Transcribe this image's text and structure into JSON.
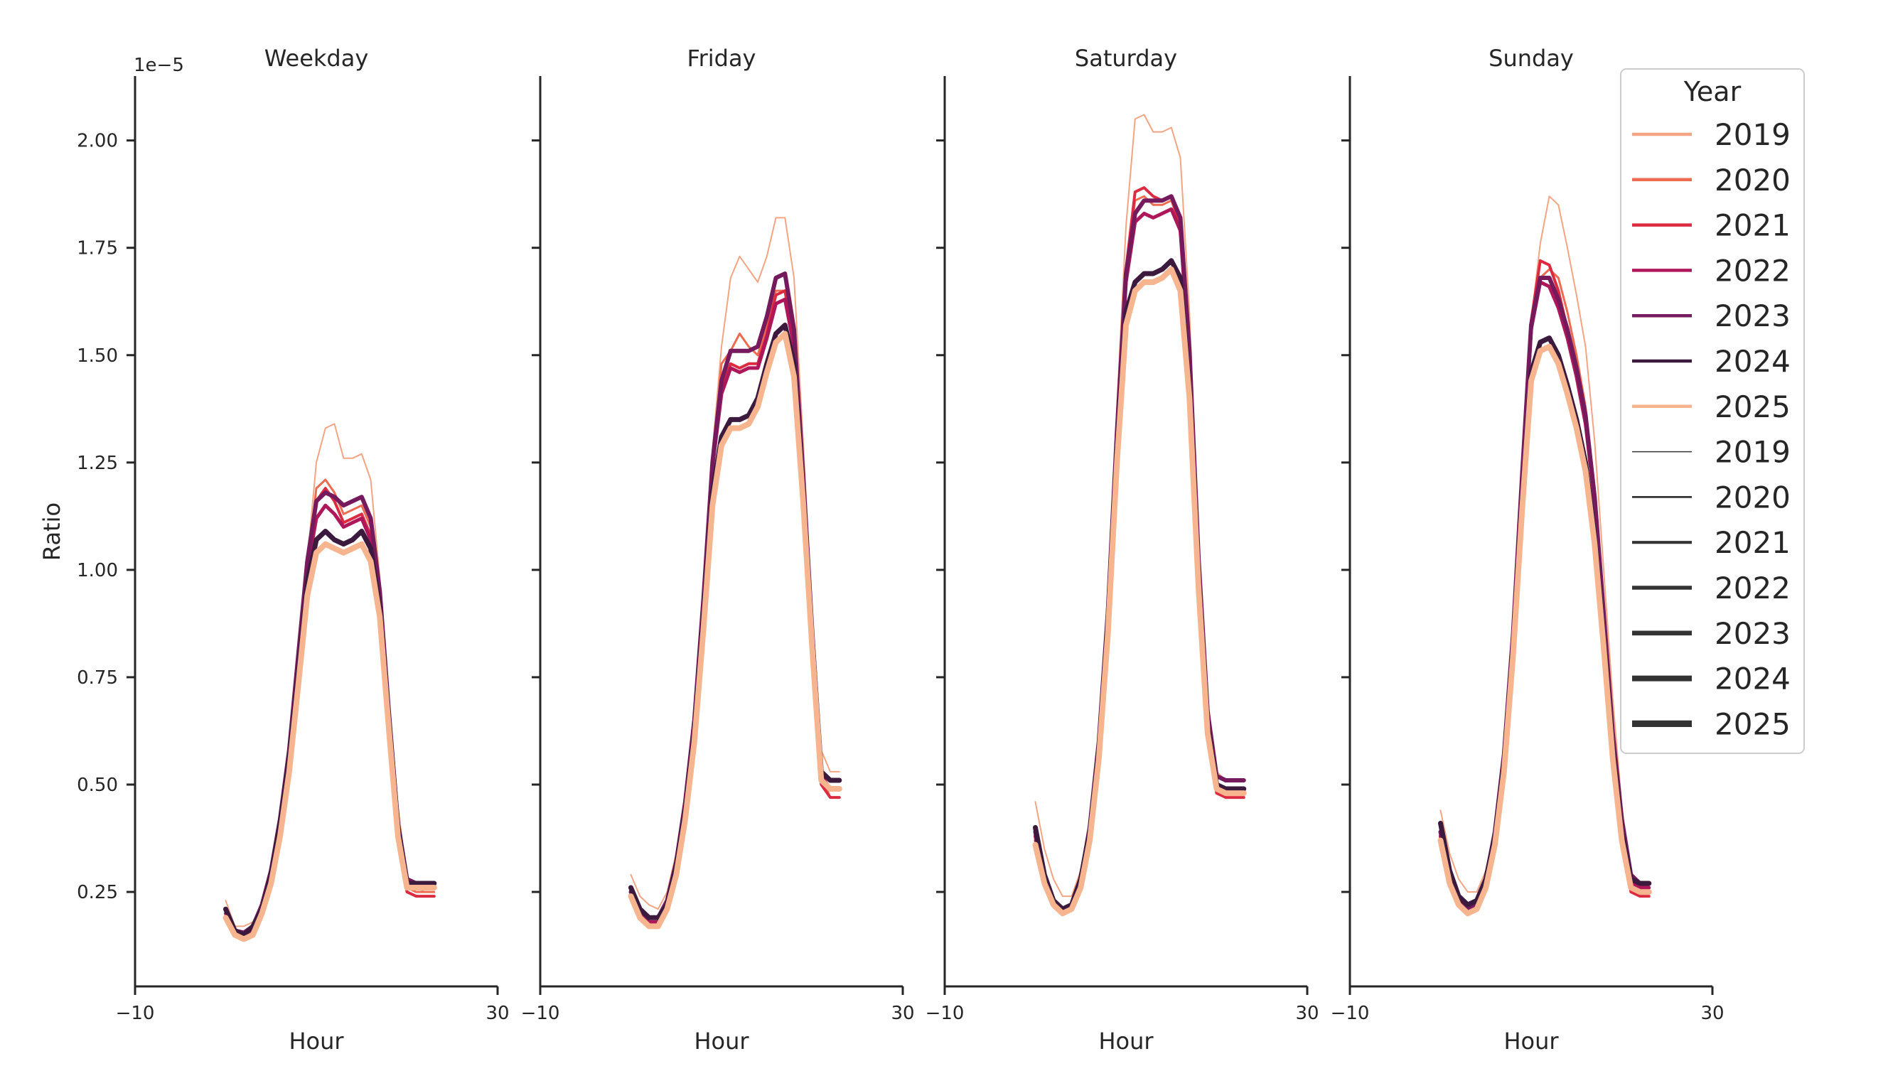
{
  "chart_data": {
    "type": "line",
    "ylabel": "Ratio",
    "y_offset_label": "1e−5",
    "y_scale": 1e-05,
    "xlim": [
      -10,
      30
    ],
    "ylim": [
      0.03,
      2.15
    ],
    "x_ticks": [
      -10,
      30
    ],
    "x_tick_labels": [
      "−10",
      "30"
    ],
    "y_ticks": [
      0.25,
      0.5,
      0.75,
      1.0,
      1.25,
      1.5,
      1.75,
      2.0
    ],
    "y_tick_labels": [
      "0.25",
      "0.50",
      "0.75",
      "1.00",
      "1.25",
      "1.50",
      "1.75",
      "2.00"
    ],
    "x": [
      0,
      1,
      2,
      3,
      4,
      5,
      6,
      7,
      8,
      9,
      10,
      11,
      12,
      13,
      14,
      15,
      16,
      17,
      18,
      19,
      20,
      21,
      22,
      23
    ],
    "panels": [
      {
        "title": "Weekday",
        "xlabel": "Hour",
        "series": [
          {
            "name": "2019",
            "values": [
              0.23,
              0.17,
              0.17,
              0.18,
              0.22,
              0.29,
              0.4,
              0.56,
              0.78,
              1.02,
              1.25,
              1.33,
              1.34,
              1.26,
              1.26,
              1.27,
              1.21,
              0.98,
              0.7,
              0.45,
              0.28,
              0.26,
              0.25,
              0.25
            ]
          },
          {
            "name": "2020",
            "values": [
              0.2,
              0.15,
              0.145,
              0.16,
              0.21,
              0.29,
              0.41,
              0.57,
              0.78,
              1.0,
              1.19,
              1.21,
              1.18,
              1.13,
              1.14,
              1.15,
              1.1,
              0.93,
              0.65,
              0.4,
              0.26,
              0.25,
              0.25,
              0.25
            ]
          },
          {
            "name": "2021",
            "values": [
              0.2,
              0.15,
              0.145,
              0.16,
              0.21,
              0.29,
              0.4,
              0.57,
              0.78,
              1.0,
              1.16,
              1.19,
              1.16,
              1.11,
              1.12,
              1.13,
              1.08,
              0.92,
              0.64,
              0.4,
              0.25,
              0.24,
              0.24,
              0.24
            ]
          },
          {
            "name": "2022",
            "values": [
              0.2,
              0.16,
              0.15,
              0.17,
              0.22,
              0.3,
              0.42,
              0.58,
              0.79,
              1.0,
              1.12,
              1.15,
              1.13,
              1.1,
              1.11,
              1.12,
              1.07,
              0.92,
              0.65,
              0.4,
              0.27,
              0.26,
              0.26,
              0.26
            ]
          },
          {
            "name": "2023",
            "values": [
              0.21,
              0.16,
              0.155,
              0.17,
              0.22,
              0.3,
              0.42,
              0.58,
              0.8,
              1.02,
              1.16,
              1.18,
              1.17,
              1.15,
              1.16,
              1.17,
              1.12,
              0.95,
              0.67,
              0.41,
              0.28,
              0.27,
              0.27,
              0.27
            ]
          },
          {
            "name": "2024",
            "values": [
              0.21,
              0.16,
              0.15,
              0.17,
              0.21,
              0.29,
              0.41,
              0.56,
              0.76,
              0.97,
              1.07,
              1.09,
              1.07,
              1.06,
              1.07,
              1.09,
              1.05,
              0.91,
              0.65,
              0.4,
              0.27,
              0.27,
              0.27,
              0.27
            ]
          },
          {
            "name": "2025",
            "values": [
              0.19,
              0.15,
              0.14,
              0.15,
              0.2,
              0.27,
              0.38,
              0.53,
              0.73,
              0.94,
              1.04,
              1.06,
              1.05,
              1.04,
              1.05,
              1.06,
              1.02,
              0.89,
              0.63,
              0.38,
              0.26,
              0.26,
              0.26,
              0.26
            ]
          }
        ]
      },
      {
        "title": "Friday",
        "xlabel": "Hour",
        "series": [
          {
            "name": "2019",
            "values": [
              0.29,
              0.24,
              0.22,
              0.21,
              0.25,
              0.34,
              0.48,
              0.68,
              0.96,
              1.28,
              1.52,
              1.68,
              1.73,
              1.7,
              1.67,
              1.73,
              1.82,
              1.82,
              1.68,
              1.3,
              0.9,
              0.58,
              0.53,
              0.53
            ]
          },
          {
            "name": "2020",
            "values": [
              0.24,
              0.2,
              0.18,
              0.18,
              0.22,
              0.31,
              0.45,
              0.64,
              0.92,
              1.24,
              1.48,
              1.51,
              1.55,
              1.52,
              1.5,
              1.57,
              1.65,
              1.65,
              1.54,
              1.2,
              0.85,
              0.52,
              0.47,
              0.47
            ]
          },
          {
            "name": "2021",
            "values": [
              0.24,
              0.2,
              0.18,
              0.18,
              0.22,
              0.31,
              0.45,
              0.64,
              0.92,
              1.24,
              1.42,
              1.48,
              1.47,
              1.48,
              1.48,
              1.55,
              1.64,
              1.65,
              1.52,
              1.18,
              0.82,
              0.5,
              0.47,
              0.47
            ]
          },
          {
            "name": "2022",
            "values": [
              0.25,
              0.2,
              0.18,
              0.18,
              0.22,
              0.31,
              0.45,
              0.64,
              0.92,
              1.24,
              1.41,
              1.47,
              1.46,
              1.47,
              1.47,
              1.54,
              1.62,
              1.63,
              1.52,
              1.2,
              0.84,
              0.52,
              0.49,
              0.49
            ]
          },
          {
            "name": "2023",
            "values": [
              0.25,
              0.21,
              0.19,
              0.19,
              0.23,
              0.32,
              0.46,
              0.65,
              0.93,
              1.25,
              1.44,
              1.51,
              1.51,
              1.51,
              1.52,
              1.59,
              1.68,
              1.69,
              1.56,
              1.22,
              0.86,
              0.53,
              0.51,
              0.51
            ]
          },
          {
            "name": "2024",
            "values": [
              0.26,
              0.21,
              0.19,
              0.19,
              0.22,
              0.31,
              0.44,
              0.62,
              0.89,
              1.18,
              1.31,
              1.35,
              1.35,
              1.36,
              1.4,
              1.48,
              1.55,
              1.57,
              1.48,
              1.18,
              0.84,
              0.53,
              0.51,
              0.51
            ]
          },
          {
            "name": "2025",
            "values": [
              0.24,
              0.19,
              0.17,
              0.17,
              0.21,
              0.29,
              0.42,
              0.6,
              0.86,
              1.15,
              1.29,
              1.33,
              1.33,
              1.34,
              1.38,
              1.46,
              1.53,
              1.55,
              1.45,
              1.16,
              0.82,
              0.51,
              0.49,
              0.49
            ]
          }
        ]
      },
      {
        "title": "Saturday",
        "xlabel": "Hour",
        "series": [
          {
            "name": "2019",
            "values": [
              0.46,
              0.35,
              0.28,
              0.24,
              0.24,
              0.3,
              0.42,
              0.62,
              0.94,
              1.38,
              1.8,
              2.05,
              2.06,
              2.02,
              2.02,
              2.03,
              1.96,
              1.6,
              1.08,
              0.7,
              0.53,
              0.51,
              0.51,
              0.51
            ]
          },
          {
            "name": "2020",
            "values": [
              0.38,
              0.28,
              0.23,
              0.21,
              0.22,
              0.28,
              0.4,
              0.6,
              0.9,
              1.32,
              1.7,
              1.86,
              1.87,
              1.85,
              1.85,
              1.86,
              1.8,
              1.5,
              1.02,
              0.66,
              0.5,
              0.49,
              0.49,
              0.49
            ]
          },
          {
            "name": "2021",
            "values": [
              0.37,
              0.28,
              0.22,
              0.2,
              0.21,
              0.27,
              0.39,
              0.59,
              0.89,
              1.31,
              1.7,
              1.88,
              1.89,
              1.87,
              1.86,
              1.87,
              1.8,
              1.49,
              1.0,
              0.64,
              0.48,
              0.47,
              0.47,
              0.47
            ]
          },
          {
            "name": "2022",
            "values": [
              0.38,
              0.28,
              0.22,
              0.2,
              0.21,
              0.27,
              0.39,
              0.59,
              0.89,
              1.3,
              1.67,
              1.81,
              1.83,
              1.82,
              1.83,
              1.84,
              1.79,
              1.49,
              1.01,
              0.65,
              0.5,
              0.49,
              0.49,
              0.49
            ]
          },
          {
            "name": "2023",
            "values": [
              0.39,
              0.29,
              0.23,
              0.21,
              0.22,
              0.28,
              0.4,
              0.6,
              0.9,
              1.32,
              1.69,
              1.83,
              1.86,
              1.86,
              1.86,
              1.87,
              1.82,
              1.51,
              1.03,
              0.67,
              0.52,
              0.51,
              0.51,
              0.51
            ]
          },
          {
            "name": "2024",
            "values": [
              0.4,
              0.29,
              0.23,
              0.21,
              0.22,
              0.28,
              0.39,
              0.58,
              0.88,
              1.28,
              1.6,
              1.67,
              1.69,
              1.69,
              1.7,
              1.72,
              1.68,
              1.42,
              0.98,
              0.64,
              0.5,
              0.49,
              0.49,
              0.49
            ]
          },
          {
            "name": "2025",
            "values": [
              0.36,
              0.27,
              0.22,
              0.2,
              0.21,
              0.26,
              0.37,
              0.56,
              0.85,
              1.25,
              1.57,
              1.65,
              1.67,
              1.67,
              1.68,
              1.7,
              1.65,
              1.4,
              0.96,
              0.62,
              0.49,
              0.48,
              0.48,
              0.48
            ]
          }
        ]
      },
      {
        "title": "Sunday",
        "xlabel": "Hour",
        "series": [
          {
            "name": "2019",
            "values": [
              0.44,
              0.34,
              0.28,
              0.25,
              0.25,
              0.3,
              0.4,
              0.58,
              0.86,
              1.22,
              1.58,
              1.76,
              1.87,
              1.85,
              1.75,
              1.64,
              1.52,
              1.3,
              1.0,
              0.7,
              0.45,
              0.28,
              0.26,
              0.26
            ]
          },
          {
            "name": "2020",
            "values": [
              0.38,
              0.28,
              0.23,
              0.21,
              0.22,
              0.27,
              0.38,
              0.56,
              0.84,
              1.2,
              1.55,
              1.68,
              1.7,
              1.68,
              1.6,
              1.5,
              1.38,
              1.18,
              0.9,
              0.62,
              0.4,
              0.26,
              0.24,
              0.24
            ]
          },
          {
            "name": "2021",
            "values": [
              0.37,
              0.28,
              0.22,
              0.2,
              0.21,
              0.27,
              0.38,
              0.56,
              0.84,
              1.21,
              1.58,
              1.72,
              1.71,
              1.65,
              1.56,
              1.46,
              1.34,
              1.15,
              0.88,
              0.6,
              0.39,
              0.25,
              0.24,
              0.24
            ]
          },
          {
            "name": "2022",
            "values": [
              0.38,
              0.28,
              0.22,
              0.2,
              0.21,
              0.27,
              0.38,
              0.56,
              0.84,
              1.21,
              1.56,
              1.67,
              1.66,
              1.61,
              1.54,
              1.45,
              1.34,
              1.16,
              0.89,
              0.61,
              0.4,
              0.27,
              0.26,
              0.26
            ]
          },
          {
            "name": "2023",
            "values": [
              0.39,
              0.29,
              0.23,
              0.21,
              0.22,
              0.28,
              0.39,
              0.57,
              0.85,
              1.22,
              1.57,
              1.68,
              1.68,
              1.63,
              1.56,
              1.47,
              1.36,
              1.17,
              0.9,
              0.62,
              0.42,
              0.29,
              0.27,
              0.27
            ]
          },
          {
            "name": "2024",
            "values": [
              0.41,
              0.3,
              0.24,
              0.22,
              0.23,
              0.28,
              0.38,
              0.55,
              0.82,
              1.16,
              1.46,
              1.53,
              1.54,
              1.5,
              1.43,
              1.35,
              1.25,
              1.08,
              0.84,
              0.58,
              0.39,
              0.28,
              0.27,
              0.27
            ]
          },
          {
            "name": "2025",
            "values": [
              0.37,
              0.27,
              0.22,
              0.2,
              0.21,
              0.26,
              0.36,
              0.53,
              0.8,
              1.14,
              1.44,
              1.51,
              1.52,
              1.48,
              1.41,
              1.33,
              1.23,
              1.06,
              0.82,
              0.56,
              0.37,
              0.26,
              0.25,
              0.25
            ]
          }
        ]
      }
    ],
    "legend": {
      "title": "Year",
      "placement": "top-right",
      "hue_entries": [
        {
          "label": "2019",
          "color": "#f3a583"
        },
        {
          "label": "2020",
          "color": "#ee6a50"
        },
        {
          "label": "2021",
          "color": "#dc2a40"
        },
        {
          "label": "2022",
          "color": "#ae1759"
        },
        {
          "label": "2023",
          "color": "#761a5e"
        },
        {
          "label": "2024",
          "color": "#3b1a3e"
        },
        {
          "label": "2025",
          "color": "#f6b48f"
        }
      ],
      "size_entries": [
        {
          "label": "2019"
        },
        {
          "label": "2020"
        },
        {
          "label": "2021"
        },
        {
          "label": "2022"
        },
        {
          "label": "2023"
        },
        {
          "label": "2024"
        },
        {
          "label": "2025"
        }
      ]
    }
  }
}
